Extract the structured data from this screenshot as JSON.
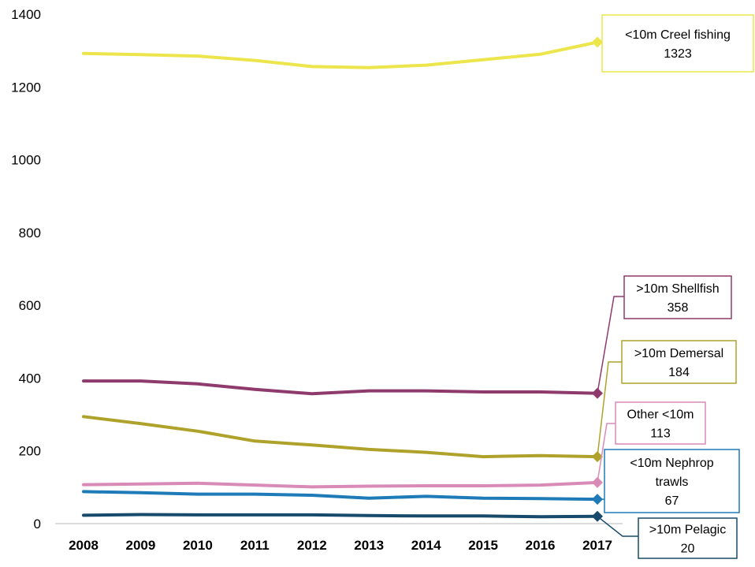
{
  "chart_data": {
    "type": "line",
    "title": "",
    "xlabel": "",
    "ylabel": "",
    "x": [
      "2008",
      "2009",
      "2010",
      "2011",
      "2012",
      "2013",
      "2014",
      "2015",
      "2016",
      "2017"
    ],
    "ylim": [
      0,
      1400
    ],
    "yticks": [
      0,
      200,
      400,
      600,
      800,
      1000,
      1200,
      1400
    ],
    "grid": false,
    "legend": "none",
    "series": [
      {
        "name": "<10m Creel fishing",
        "color": "#ECE54B",
        "values": [
          1292,
          1289,
          1285,
          1273,
          1256,
          1253,
          1260,
          1275,
          1290,
          1323
        ],
        "label_lines": [
          "<10m Creel fishing",
          "1323"
        ]
      },
      {
        "name": ">10m Shellfish",
        "color": "#8E3A6C",
        "values": [
          392,
          392,
          384,
          369,
          357,
          365,
          365,
          362,
          362,
          358
        ],
        "label_lines": [
          ">10m Shellfish",
          "358"
        ]
      },
      {
        "name": ">10m Demersal",
        "color": "#AFA22B",
        "values": [
          294,
          275,
          254,
          227,
          216,
          204,
          196,
          184,
          187,
          184
        ],
        "label_lines": [
          ">10m Demersal",
          "184"
        ]
      },
      {
        "name": "Other <10m",
        "color": "#D98BB8",
        "values": [
          107,
          109,
          111,
          106,
          101,
          103,
          104,
          104,
          106,
          113
        ],
        "label_lines": [
          "Other <10m",
          "113"
        ]
      },
      {
        "name": "<10m Nephrop trawls",
        "color": "#1E7BB8",
        "values": [
          88,
          85,
          81,
          81,
          78,
          70,
          75,
          70,
          69,
          67
        ],
        "label_lines": [
          "<10m Nephrop",
          "trawls",
          "67"
        ]
      },
      {
        "name": ">10m Pelagic",
        "color": "#174A6B",
        "values": [
          23,
          25,
          24,
          24,
          24,
          22,
          21,
          21,
          19,
          20
        ],
        "label_lines": [
          ">10m Pelagic",
          "20"
        ]
      }
    ]
  }
}
